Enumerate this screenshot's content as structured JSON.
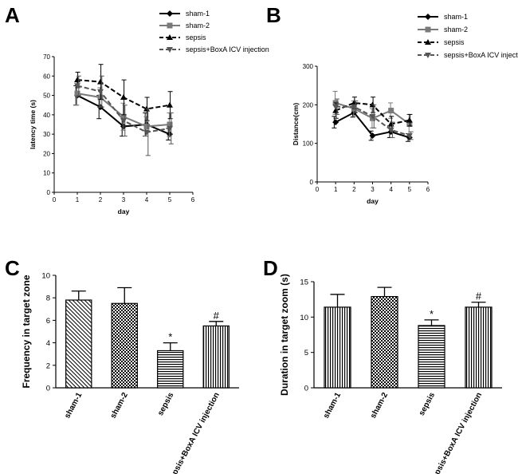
{
  "chart_data": [
    {
      "panel": "A",
      "type": "line",
      "xlabel": "day",
      "ylabel": "latency time  (s)",
      "xlim": [
        0,
        6
      ],
      "ylim": [
        0,
        70
      ],
      "xticks": [
        "0",
        "1",
        "2",
        "3",
        "4",
        "5",
        "6"
      ],
      "yticks": [
        "0",
        "10",
        "20",
        "30",
        "40",
        "50",
        "60",
        "70"
      ],
      "x": [
        1,
        2,
        3,
        4,
        5
      ],
      "series": [
        {
          "name": "sham-1",
          "values": [
            50,
            44,
            34,
            35,
            30
          ],
          "errors": [
            5,
            6,
            5,
            6,
            3
          ],
          "color": "#000000",
          "dash": "",
          "marker": "diamond"
        },
        {
          "name": "sham-2",
          "values": [
            51,
            49,
            39,
            34,
            35
          ],
          "errors": [
            6,
            5,
            7,
            5,
            6
          ],
          "color": "#7a7a7a",
          "dash": "",
          "marker": "square"
        },
        {
          "name": "sepsis",
          "values": [
            58,
            57,
            49,
            43,
            45
          ],
          "errors": [
            4,
            9,
            9,
            6,
            7
          ],
          "color": "#000000",
          "dash": "6,3",
          "marker": "triangle"
        },
        {
          "name": "sepsis+BoxA ICV injection",
          "values": [
            55,
            52,
            37,
            31,
            33
          ],
          "errors": [
            5,
            8,
            8,
            12,
            8
          ],
          "color": "#555555",
          "dash": "6,3",
          "marker": "triangle-down"
        }
      ]
    },
    {
      "panel": "B",
      "type": "line",
      "xlabel": "day",
      "ylabel": "Distance(cm)",
      "xlim": [
        0,
        6
      ],
      "ylim": [
        0,
        300
      ],
      "xticks": [
        "0",
        "1",
        "2",
        "3",
        "4",
        "5",
        "6"
      ],
      "yticks": [
        "0",
        "100",
        "200",
        "300"
      ],
      "x": [
        1,
        2,
        3,
        4,
        5
      ],
      "series": [
        {
          "name": "sham-1",
          "values": [
            155,
            180,
            120,
            130,
            115
          ],
          "errors": [
            15,
            12,
            12,
            15,
            10
          ],
          "color": "#000000",
          "dash": "",
          "marker": "diamond"
        },
        {
          "name": "sham-2",
          "values": [
            205,
            190,
            165,
            185,
            150
          ],
          "errors": [
            30,
            20,
            25,
            20,
            25
          ],
          "color": "#7a7a7a",
          "dash": "",
          "marker": "square"
        },
        {
          "name": "sepsis",
          "values": [
            185,
            205,
            200,
            150,
            160
          ],
          "errors": [
            20,
            15,
            20,
            20,
            15
          ],
          "color": "#000000",
          "dash": "6,3",
          "marker": "triangle"
        },
        {
          "name": "sepsis+BoxA ICV injection",
          "values": [
            195,
            195,
            170,
            135,
            120
          ],
          "errors": [
            20,
            15,
            30,
            20,
            10
          ],
          "color": "#555555",
          "dash": "6,3",
          "marker": "triangle-down"
        }
      ]
    },
    {
      "panel": "C",
      "type": "bar",
      "ylabel": "Frequency in target zone",
      "ylim": [
        0,
        10
      ],
      "yticks": [
        "0",
        "2",
        "4",
        "6",
        "8",
        "10"
      ],
      "categories": [
        "sham-1",
        "sham-2",
        "sepsis",
        "sepsis+BoxA ICV injection"
      ],
      "values": [
        7.8,
        7.5,
        3.3,
        5.5
      ],
      "errors": [
        0.8,
        1.4,
        0.7,
        0.4
      ],
      "annotations": [
        "",
        "",
        "*",
        "#"
      ],
      "patterns": [
        "diag-back",
        "checker",
        "hlines",
        "vlines"
      ]
    },
    {
      "panel": "D",
      "type": "bar",
      "ylabel": "Duration in target zoom  (s)",
      "ylim": [
        0,
        15
      ],
      "yticks": [
        "0",
        "5",
        "10",
        "15"
      ],
      "categories": [
        "sham-1",
        "sham-2",
        "sepsis",
        "sepsis+BoxA ICV injection"
      ],
      "values": [
        11.4,
        12.9,
        8.8,
        11.4
      ],
      "errors": [
        1.8,
        1.3,
        0.8,
        0.7
      ],
      "annotations": [
        "",
        "",
        "*",
        "#"
      ],
      "patterns": [
        "vlines",
        "checker",
        "hlines",
        "vlines"
      ]
    }
  ]
}
